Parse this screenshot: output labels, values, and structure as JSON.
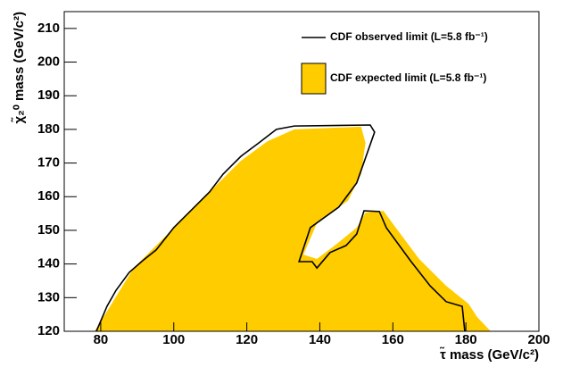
{
  "chart_data": {
    "type": "contour",
    "xlabel": "τ̃ mass (GeV/c²)",
    "ylabel": "χ̃₂⁰ mass (GeV/c²)",
    "xlim": [
      70,
      200
    ],
    "ylim": [
      120,
      215
    ],
    "xticks": [
      80,
      100,
      120,
      140,
      160,
      180,
      200
    ],
    "yticks": [
      120,
      130,
      140,
      150,
      160,
      170,
      180,
      190,
      200,
      210
    ],
    "series": [
      {
        "name": "CDF observed limit (L=5.8 fb⁻¹)",
        "color": "#000000",
        "fill": false,
        "x": [
          78.8,
          81.7,
          84.2,
          87.8,
          91.5,
          95.2,
          100,
          104.9,
          109.8,
          113.5,
          118.4,
          123.3,
          128.1,
          133,
          153.8,
          155,
          150.1,
          145.2,
          137.4,
          134.3,
          137.9,
          139.2,
          142.8,
          147.2,
          150.1,
          152.1,
          156.3,
          158.2,
          164.8,
          170.2,
          174.6,
          179,
          179.7
        ],
        "values": [
          120,
          127.4,
          132.2,
          137.5,
          141,
          144.2,
          150.8,
          156.1,
          161.4,
          166.7,
          172,
          176,
          180,
          181,
          181.3,
          179.2,
          164.1,
          156.9,
          150.8,
          140.7,
          140.7,
          138.8,
          143.4,
          145.5,
          148.9,
          155.8,
          155.6,
          150.8,
          141,
          133.5,
          128.8,
          127.4,
          120
        ]
      },
      {
        "name": "CDF expected limit (L=5.8 fb⁻¹)",
        "color": "#ffcc00",
        "fill": true,
        "x": [
          78.3,
          83,
          89,
          96.4,
          103.7,
          111,
          118.4,
          125.7,
          133,
          151.3,
          152.5,
          151.3,
          147.7,
          139.2,
          135.5,
          139.2,
          144.1,
          150.1,
          152.5,
          157.4,
          159.9,
          167.2,
          174.6,
          180.7,
          183.1,
          186.8
        ],
        "values": [
          120,
          128.2,
          138.8,
          146.8,
          154.8,
          162.7,
          170.7,
          176.5,
          180,
          180.8,
          176,
          166.7,
          158.8,
          152.1,
          142.8,
          141.5,
          145.5,
          150.8,
          155.3,
          155.8,
          152.1,
          141.5,
          133.5,
          128.2,
          124.2,
          120
        ]
      }
    ]
  }
}
